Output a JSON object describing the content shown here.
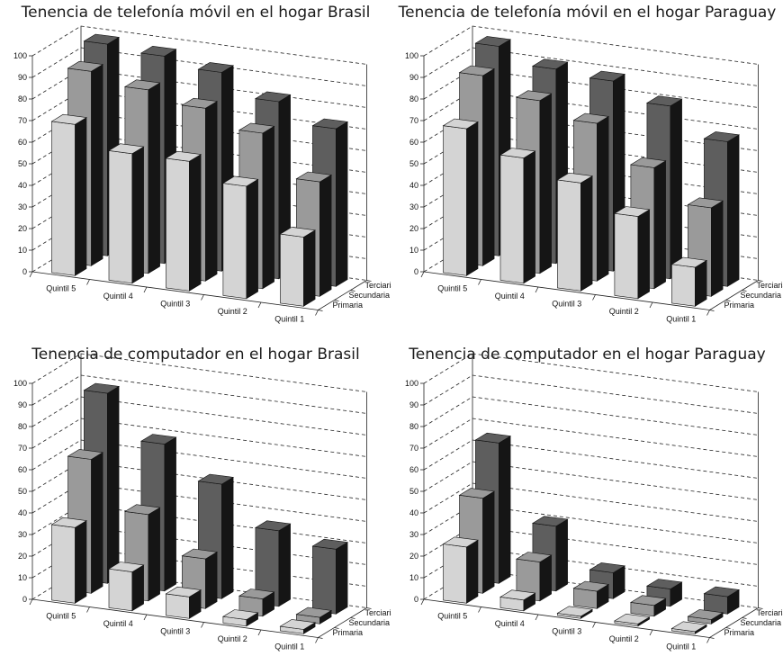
{
  "chart_data": [
    {
      "type": "bar",
      "title": "Tenencia de telefonía móvil en el hogar Brasil",
      "categories": [
        "Quintil 5",
        "Quintil 4",
        "Quintil 3",
        "Quintil 2",
        "Quintil 1"
      ],
      "depth_labels": [
        "Primaria",
        "Secundaria",
        "Terciaria"
      ],
      "series": [
        {
          "name": "Primaria",
          "values": [
            70,
            60,
            60,
            52,
            32
          ]
        },
        {
          "name": "Secundaria",
          "values": [
            90,
            85,
            80,
            72,
            53
          ]
        },
        {
          "name": "Terciaria",
          "values": [
            98,
            96,
            92,
            82,
            73
          ]
        }
      ],
      "yticks": [
        0,
        10,
        20,
        30,
        40,
        50,
        60,
        70,
        80,
        90,
        100
      ],
      "ylim": [
        0,
        100
      ],
      "grid": true,
      "colors": [
        "#d4d4d4",
        "#9a9a9a",
        "#5e5e5e"
      ]
    },
    {
      "type": "bar",
      "title": "Tenencia de telefonía móvil en el hogar Paraguay",
      "categories": [
        "Quintil 5",
        "Quintil 4",
        "Quintil 3",
        "Quintil 2",
        "Quintil 1"
      ],
      "depth_labels": [
        "Primaria",
        "Secundaria",
        "Terciaria"
      ],
      "series": [
        {
          "name": "Primaria",
          "values": [
            68,
            58,
            50,
            38,
            18
          ]
        },
        {
          "name": "Secundaria",
          "values": [
            88,
            80,
            73,
            56,
            41
          ]
        },
        {
          "name": "Terciaria",
          "values": [
            97,
            90,
            88,
            80,
            67
          ]
        }
      ],
      "yticks": [
        0,
        10,
        20,
        30,
        40,
        50,
        60,
        70,
        80,
        90,
        100
      ],
      "ylim": [
        0,
        100
      ],
      "grid": true,
      "colors": [
        "#d4d4d4",
        "#9a9a9a",
        "#5e5e5e"
      ]
    },
    {
      "type": "bar",
      "title": "Tenencia de computador en el hogar Brasil",
      "categories": [
        "Quintil 5",
        "Quintil 4",
        "Quintil 3",
        "Quintil 2",
        "Quintil 1"
      ],
      "depth_labels": [
        "Primaria",
        "Secundaria",
        "Terciaria"
      ],
      "series": [
        {
          "name": "Primaria",
          "values": [
            35,
            18,
            10,
            3,
            2
          ]
        },
        {
          "name": "Secundaria",
          "values": [
            62,
            40,
            23,
            8,
            3
          ]
        },
        {
          "name": "Terciaria",
          "values": [
            88,
            68,
            53,
            35,
            30
          ]
        }
      ],
      "yticks": [
        0,
        10,
        20,
        30,
        40,
        50,
        60,
        70,
        80,
        90,
        100
      ],
      "ylim": [
        0,
        100
      ],
      "grid": true,
      "colors": [
        "#d4d4d4",
        "#9a9a9a",
        "#5e5e5e"
      ]
    },
    {
      "type": "bar",
      "title": "Tenencia de computador en el hogar Paraguay",
      "categories": [
        "Quintil 5",
        "Quintil 4",
        "Quintil 3",
        "Quintil 2",
        "Quintil 1"
      ],
      "depth_labels": [
        "Primaria",
        "Secundaria",
        "Terciaria"
      ],
      "series": [
        {
          "name": "Primaria",
          "values": [
            26,
            5,
            1,
            1,
            1
          ]
        },
        {
          "name": "Secundaria",
          "values": [
            44,
            18,
            8,
            5,
            2
          ]
        },
        {
          "name": "Terciaria",
          "values": [
            65,
            30,
            12,
            8,
            8
          ]
        }
      ],
      "yticks": [
        0,
        10,
        20,
        30,
        40,
        50,
        60,
        70,
        80,
        90,
        100
      ],
      "ylim": [
        0,
        100
      ],
      "grid": true,
      "colors": [
        "#d4d4d4",
        "#9a9a9a",
        "#5e5e5e"
      ]
    }
  ]
}
